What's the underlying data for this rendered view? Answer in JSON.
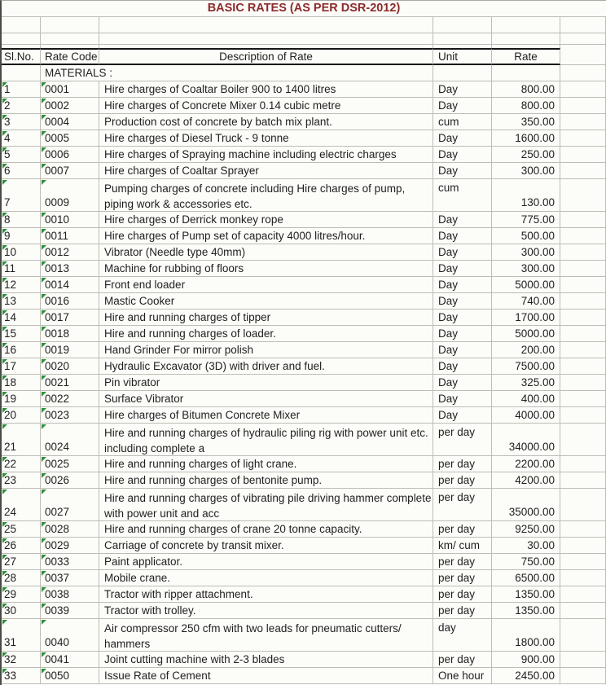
{
  "title": "BASIC RATES (AS PER DSR-2012)",
  "columns": [
    "Sl.No.",
    "Rate Code",
    "Description of Rate",
    "Unit",
    "Rate"
  ],
  "section_label": "MATERIALS :",
  "colors": {
    "title_text": "#8c2b2b",
    "grid_line": "#bdbdb6",
    "header_border": "#161616",
    "error_indicator_green": "#2f8f3c",
    "cell_background": "#fcfcf9"
  },
  "rows": [
    {
      "sl": "1",
      "code": "0001",
      "desc": "Hire charges of Coaltar Boiler 900 to 1400 litres",
      "unit": "Day",
      "rate": "800.00",
      "tall": false
    },
    {
      "sl": "2",
      "code": "0002",
      "desc": "Hire charges of Concrete Mixer 0.14 cubic metre",
      "unit": "Day",
      "rate": "800.00",
      "tall": false
    },
    {
      "sl": "3",
      "code": "0004",
      "desc": "Production cost of concrete by batch mix plant.",
      "unit": "cum",
      "rate": "350.00",
      "tall": false
    },
    {
      "sl": "4",
      "code": "0005",
      "desc": "Hire charges of Diesel Truck - 9 tonne",
      "unit": "Day",
      "rate": "1600.00",
      "tall": false
    },
    {
      "sl": "5",
      "code": "0006",
      "desc": "Hire charges of Spraying machine including electric charges",
      "unit": "Day",
      "rate": "250.00",
      "tall": false
    },
    {
      "sl": "6",
      "code": "0007",
      "desc": "Hire charges of Coaltar Sprayer",
      "unit": "Day",
      "rate": "300.00",
      "tall": false
    },
    {
      "sl": "7",
      "code": "0009",
      "desc": "Pumping charges of concrete including Hire charges of pump, piping work & accessories etc.",
      "unit": "cum",
      "rate": "130.00",
      "tall": true
    },
    {
      "sl": "8",
      "code": "0010",
      "desc": "Hire charges of Derrick monkey rope",
      "unit": "Day",
      "rate": "775.00",
      "tall": false
    },
    {
      "sl": "9",
      "code": "0011",
      "desc": "Hire charges of Pump set of capacity 4000 litres/hour.",
      "unit": "Day",
      "rate": "500.00",
      "tall": false
    },
    {
      "sl": "10",
      "code": "0012",
      "desc": "Vibrator (Needle type 40mm)",
      "unit": "Day",
      "rate": "300.00",
      "tall": false
    },
    {
      "sl": "11",
      "code": "0013",
      "desc": "Machine for rubbing of floors",
      "unit": "Day",
      "rate": "300.00",
      "tall": false
    },
    {
      "sl": "12",
      "code": "0014",
      "desc": "Front end loader",
      "unit": "Day",
      "rate": "5000.00",
      "tall": false
    },
    {
      "sl": "13",
      "code": "0016",
      "desc": "Mastic Cooker",
      "unit": "Day",
      "rate": "740.00",
      "tall": false
    },
    {
      "sl": "14",
      "code": "0017",
      "desc": "Hire and running charges of tipper",
      "unit": "Day",
      "rate": "1700.00",
      "tall": false
    },
    {
      "sl": "15",
      "code": "0018",
      "desc": "Hire and running charges of loader.",
      "unit": "Day",
      "rate": "5000.00",
      "tall": false
    },
    {
      "sl": "16",
      "code": "0019",
      "desc": "Hand Grinder For mirror polish",
      "unit": "Day",
      "rate": "200.00",
      "tall": false
    },
    {
      "sl": "17",
      "code": "0020",
      "desc": "Hydraulic Excavator (3D) with driver and fuel.",
      "unit": "Day",
      "rate": "7500.00",
      "tall": false
    },
    {
      "sl": "18",
      "code": "0021",
      "desc": "Pin vibrator",
      "unit": "Day",
      "rate": "325.00",
      "tall": false
    },
    {
      "sl": "19",
      "code": "0022",
      "desc": "Surface Vibrator",
      "unit": "Day",
      "rate": "400.00",
      "tall": false
    },
    {
      "sl": "20",
      "code": "0023",
      "desc": "Hire charges of Bitumen Concrete Mixer",
      "unit": "Day",
      "rate": "4000.00",
      "tall": false
    },
    {
      "sl": "21",
      "code": "0024",
      "desc": "Hire and running charges of hydraulic piling rig with power unit etc. including complete a",
      "unit": "per day",
      "rate": "34000.00",
      "tall": true
    },
    {
      "sl": "22",
      "code": "0025",
      "desc": "Hire and running charges of light crane.",
      "unit": "per day",
      "rate": "2200.00",
      "tall": false
    },
    {
      "sl": "23",
      "code": "0026",
      "desc": "Hire and running charges of bentonite pump.",
      "unit": "per day",
      "rate": "4200.00",
      "tall": false
    },
    {
      "sl": "24",
      "code": "0027",
      "desc": "Hire and running charges of vibrating pile driving hammer complete with power unit and acc",
      "unit": "per day",
      "rate": "35000.00",
      "tall": true
    },
    {
      "sl": "25",
      "code": "0028",
      "desc": "Hire and running charges of crane 20 tonne capacity.",
      "unit": "per day",
      "rate": "9250.00",
      "tall": false
    },
    {
      "sl": "26",
      "code": "0029",
      "desc": "Carriage of concrete by transit mixer.",
      "unit": "km/ cum",
      "rate": "30.00",
      "tall": false
    },
    {
      "sl": "27",
      "code": "0033",
      "desc": "Paint applicator.",
      "unit": "per day",
      "rate": "750.00",
      "tall": false
    },
    {
      "sl": "28",
      "code": "0037",
      "desc": "Mobile crane.",
      "unit": "per day",
      "rate": "6500.00",
      "tall": false
    },
    {
      "sl": "29",
      "code": "0038",
      "desc": "Tractor with ripper attachment.",
      "unit": "per day",
      "rate": "1350.00",
      "tall": false
    },
    {
      "sl": "30",
      "code": "0039",
      "desc": "Tractor with trolley.",
      "unit": "per day",
      "rate": "1350.00",
      "tall": false
    },
    {
      "sl": "31",
      "code": "0040",
      "desc": "Air compressor 250 cfm with two leads for pneumatic cutters/ hammers",
      "unit": "day",
      "rate": "1800.00",
      "tall": true
    },
    {
      "sl": "32",
      "code": "0041",
      "desc": "Joint cutting machine with 2-3 blades",
      "unit": "per day",
      "rate": "900.00",
      "tall": false
    },
    {
      "sl": "33",
      "code": "0050",
      "desc": "Issue Rate of Cement",
      "unit": "One hour",
      "rate": "2450.00",
      "tall": false
    }
  ]
}
